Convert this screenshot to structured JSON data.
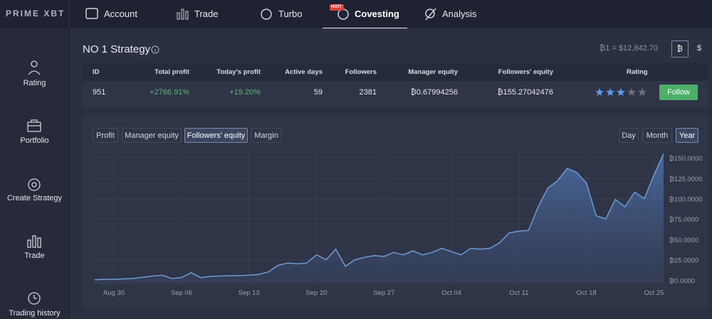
{
  "nav": {
    "logo": "PRIME XBT",
    "items": [
      "Account",
      "Trade",
      "Turbo",
      "Covesting",
      "Analysis"
    ],
    "badge": "HOT!",
    "active": 3
  },
  "sidebar": [
    "Rating",
    "Portfolio",
    "Create Strategy",
    "Trade",
    "Trading history"
  ],
  "strategy": {
    "title": "NO 1 Strategy",
    "rate": "₿1 = $12,842.70",
    "currencies": [
      "₿",
      "$"
    ]
  },
  "table": {
    "headers": [
      "ID",
      "Total profit",
      "Today's profit",
      "Active days",
      "Followers",
      "Manager equity",
      "Followers' equity",
      "Rating"
    ],
    "row": [
      "951",
      "+2766.91%",
      "+19.20%",
      "59",
      "2381",
      "₿0.67994256",
      "₿155.27042476"
    ],
    "rating": 3,
    "rating_max": 5,
    "button": "Follow"
  },
  "tabs": {
    "metrics": [
      "Profit",
      "Manager equity",
      "Followers' equity",
      "Margin"
    ],
    "active_metric": 2,
    "periods": [
      "Day",
      "Month",
      "Year"
    ],
    "active_period": 2
  },
  "chart_data": {
    "type": "area",
    "categories": [
      null,
      null,
      "Aug 30",
      null,
      null,
      null,
      null,
      null,
      null,
      "Sep 06",
      null,
      null,
      null,
      null,
      null,
      null,
      "Sep 13",
      null,
      null,
      null,
      null,
      null,
      null,
      "Sep 20",
      null,
      null,
      null,
      null,
      null,
      null,
      "Sep 27",
      null,
      null,
      null,
      null,
      null,
      null,
      "Oct 04",
      null,
      null,
      null,
      null,
      null,
      null,
      "Oct 11",
      null,
      null,
      null,
      null,
      null,
      null,
      "Oct 18",
      null,
      null,
      null,
      null,
      null,
      null,
      "Oct 25",
      null
    ],
    "values": [
      0.5,
      1,
      1,
      1.5,
      2,
      3.5,
      5,
      6,
      2,
      3,
      9,
      3,
      4.5,
      5,
      5.5,
      5.5,
      6,
      7,
      10,
      18,
      21,
      20,
      21,
      31,
      25,
      38,
      17,
      25,
      28,
      30,
      29,
      34,
      31,
      36,
      31,
      34,
      39,
      35,
      31,
      39,
      38,
      39,
      46,
      58,
      60,
      61,
      90,
      113,
      122,
      137,
      132,
      119,
      79,
      75,
      99,
      90,
      108,
      100,
      129,
      155
    ],
    "color": "#6c9bd6",
    "ylim": [
      -5,
      158
    ],
    "yticks": [
      {
        "value": 0,
        "label": "₿0.0000"
      },
      {
        "value": 25,
        "label": "₿25.0000"
      },
      {
        "value": 50,
        "label": "₿50.0000"
      },
      {
        "value": 75,
        "label": "₿75.0000"
      },
      {
        "value": 100,
        "label": "₿100.0000"
      },
      {
        "value": 125,
        "label": "₿125.0000"
      },
      {
        "value": 150,
        "label": "₿150.0000"
      }
    ],
    "grid": true
  }
}
